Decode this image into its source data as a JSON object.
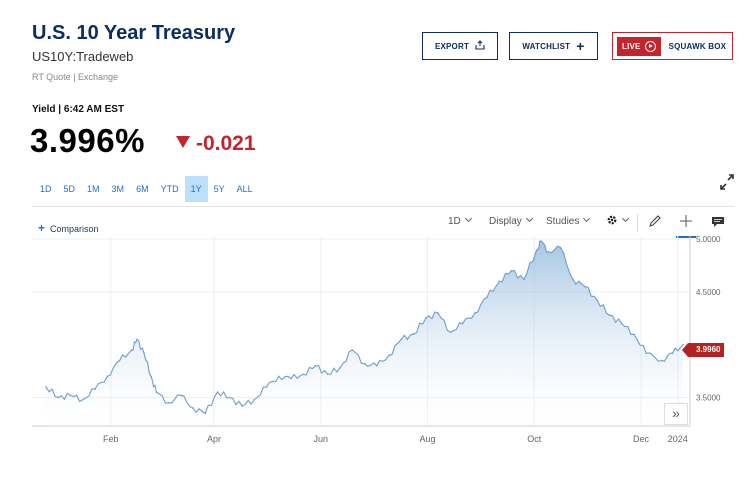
{
  "header": {
    "title": "U.S. 10 Year Treasury",
    "symbol": "US10Y:Tradeweb",
    "quote_source": "RT Quote | Exchange"
  },
  "buttons": {
    "export": "EXPORT",
    "export_icon": "share-icon",
    "watchlist": "WATCHLIST",
    "watchlist_icon": "plus-icon",
    "live_badge": "LIVE",
    "squawk": "SQUAWK BOX"
  },
  "quote": {
    "label": "Yield | 6:42 AM EST",
    "value": "3.996%",
    "change": "-0.021",
    "change_direction": "down",
    "change_color": "#c4242b"
  },
  "ranges": [
    "1D",
    "5D",
    "1M",
    "3M",
    "6M",
    "YTD",
    "1Y",
    "5Y",
    "ALL"
  ],
  "active_range": "1Y",
  "toolbar": {
    "comparison": "Comparison",
    "interval": "1D",
    "display": "Display",
    "studies": "Studies"
  },
  "chart_data": {
    "type": "area",
    "x_ticks": [
      "Feb",
      "Apr",
      "Jun",
      "Aug",
      "Oct",
      "Dec",
      "2024"
    ],
    "y_ticks": [
      "5.0000",
      "4.5000",
      "3.5000"
    ],
    "ylim": [
      3.23,
      5.03
    ],
    "last_value_label": "3.9960",
    "grid": true,
    "color": "#6a9fd0",
    "x": [
      "2023-01-09",
      "2023-01-16",
      "2023-01-23",
      "2023-01-30",
      "2023-02-06",
      "2023-02-13",
      "2023-02-20",
      "2023-02-27",
      "2023-03-02",
      "2023-03-06",
      "2023-03-10",
      "2023-03-13",
      "2023-03-20",
      "2023-03-27",
      "2023-04-03",
      "2023-04-10",
      "2023-04-17",
      "2023-04-24",
      "2023-05-01",
      "2023-05-08",
      "2023-05-15",
      "2023-05-22",
      "2023-05-29",
      "2023-06-05",
      "2023-06-12",
      "2023-06-19",
      "2023-06-26",
      "2023-07-03",
      "2023-07-10",
      "2023-07-17",
      "2023-07-24",
      "2023-07-31",
      "2023-08-07",
      "2023-08-14",
      "2023-08-21",
      "2023-08-28",
      "2023-09-04",
      "2023-09-11",
      "2023-09-18",
      "2023-09-25",
      "2023-10-02",
      "2023-10-09",
      "2023-10-16",
      "2023-10-19",
      "2023-10-23",
      "2023-10-30",
      "2023-11-06",
      "2023-11-13",
      "2023-11-20",
      "2023-11-27",
      "2023-12-04",
      "2023-12-11",
      "2023-12-18",
      "2023-12-27",
      "2024-01-02",
      "2024-01-08"
    ],
    "values": [
      3.6,
      3.5,
      3.52,
      3.48,
      3.58,
      3.7,
      3.85,
      3.95,
      4.05,
      3.92,
      3.7,
      3.55,
      3.45,
      3.52,
      3.4,
      3.35,
      3.55,
      3.5,
      3.42,
      3.48,
      3.6,
      3.7,
      3.68,
      3.72,
      3.8,
      3.72,
      3.78,
      3.95,
      3.82,
      3.8,
      3.9,
      4.05,
      4.1,
      4.25,
      4.3,
      4.12,
      4.2,
      4.3,
      4.45,
      4.6,
      4.7,
      4.62,
      4.88,
      4.98,
      4.88,
      4.92,
      4.62,
      4.55,
      4.42,
      4.28,
      4.2,
      4.1,
      3.92,
      3.85,
      3.92,
      4.0
    ]
  }
}
